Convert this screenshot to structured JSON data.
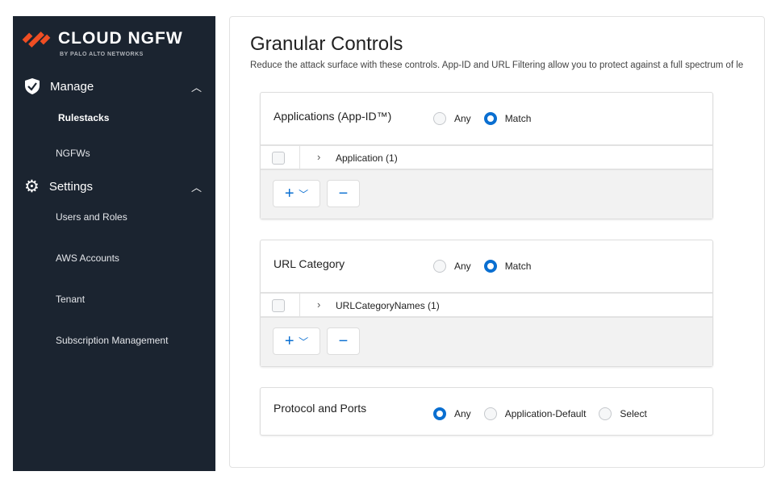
{
  "sidebar": {
    "logo": "CLOUD NGFW",
    "logo_sub": "BY PALO ALTO NETWORKS",
    "brand_color": "#f04e23",
    "manage": {
      "label": "Manage",
      "items": [
        "Rulestacks",
        "NGFWs"
      ]
    },
    "settings": {
      "label": "Settings",
      "items": [
        "Users and Roles",
        "AWS Accounts",
        "Tenant",
        "Subscription Management"
      ]
    }
  },
  "main": {
    "title": "Granular Controls",
    "description": "Reduce the attack surface with these controls. App-ID and URL Filtering allow you to protect against a full spectrum of le",
    "apps": {
      "title": "Applications (App-ID™)",
      "options": [
        "Any",
        "Match"
      ],
      "selected": "Match",
      "row": "Application (1)"
    },
    "url": {
      "title": "URL Category",
      "options": [
        "Any",
        "Match"
      ],
      "selected": "Match",
      "row": "URLCategoryNames (1)"
    },
    "ports": {
      "title": "Protocol and Ports",
      "options": [
        "Any",
        "Application-Default",
        "Select"
      ],
      "selected": "Any"
    }
  },
  "accent": "#0a6fd1"
}
